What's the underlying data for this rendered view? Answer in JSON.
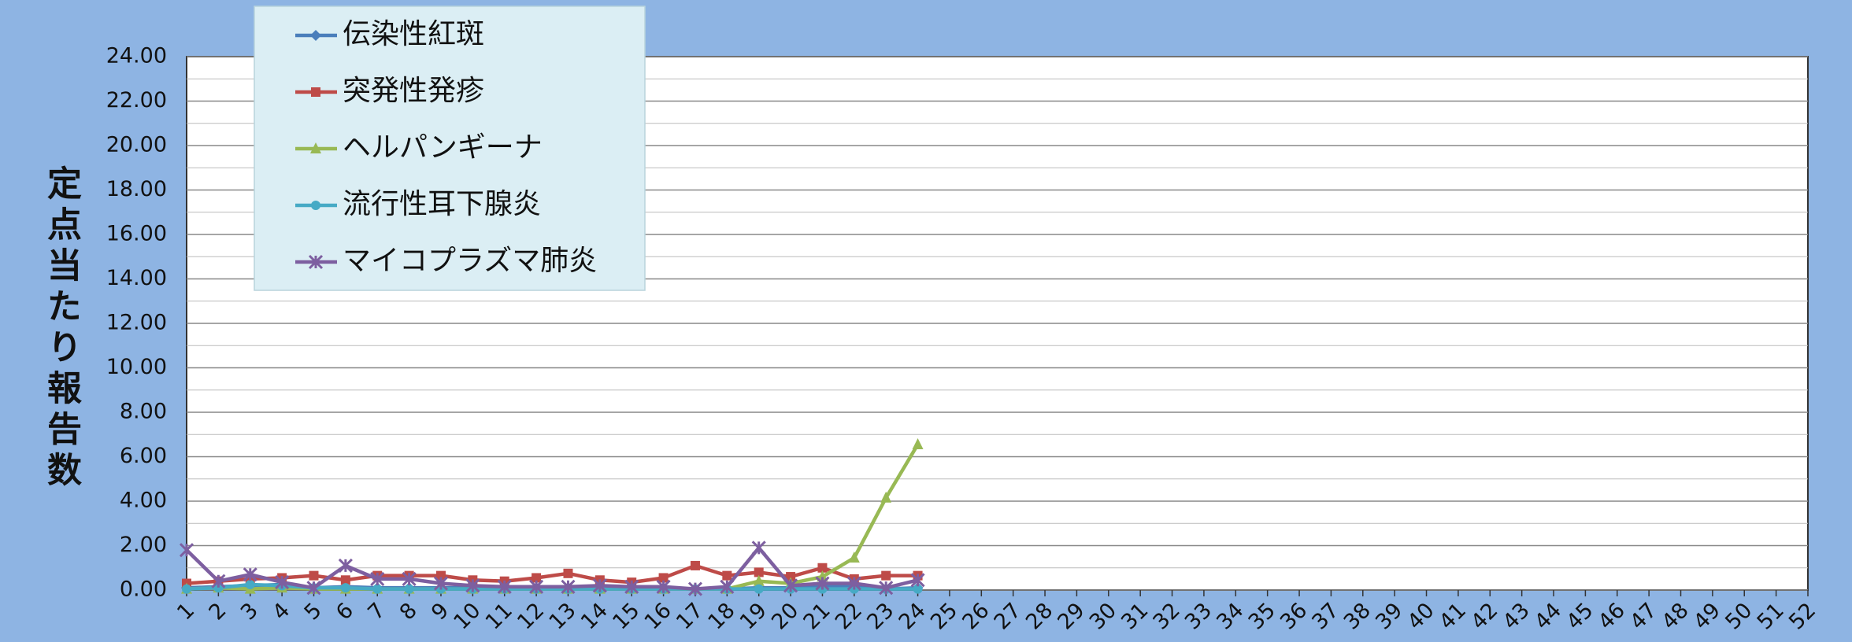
{
  "chart_data": {
    "type": "line",
    "y_label": "定点当たり報告数",
    "categories": [
      "1",
      "2",
      "3",
      "4",
      "5",
      "6",
      "7",
      "8",
      "9",
      "10",
      "11",
      "12",
      "13",
      "14",
      "15",
      "16",
      "17",
      "18",
      "19",
      "20",
      "21",
      "22",
      "23",
      "24",
      "25",
      "26",
      "27",
      "28",
      "29",
      "30",
      "31",
      "32",
      "33",
      "34",
      "35",
      "36",
      "37",
      "38",
      "39",
      "40",
      "41",
      "42",
      "43",
      "44",
      "45",
      "46",
      "47",
      "48",
      "49",
      "50",
      "51",
      "52"
    ],
    "series": [
      {
        "name": "伝染性紅斑",
        "color": "#4a7ebb",
        "marker": "diamond",
        "values": [
          0.1,
          0.15,
          0.2,
          0.25,
          0.1,
          0.15,
          0.1,
          0.1,
          0.1,
          0.1,
          0.1,
          0.1,
          0.1,
          0.1,
          0.1,
          0.05,
          0.05,
          0.05,
          0.1,
          0.1,
          0.2,
          0.15,
          0.05,
          0.1,
          null,
          null,
          null,
          null,
          null,
          null,
          null,
          null,
          null,
          null,
          null,
          null,
          null,
          null,
          null,
          null,
          null,
          null,
          null,
          null,
          null,
          null,
          null,
          null,
          null,
          null,
          null,
          null
        ]
      },
      {
        "name": "突発性発疹",
        "color": "#be4b48",
        "marker": "square",
        "values": [
          0.3,
          0.4,
          0.5,
          0.55,
          0.65,
          0.45,
          0.65,
          0.65,
          0.65,
          0.45,
          0.4,
          0.55,
          0.75,
          0.45,
          0.35,
          0.55,
          1.1,
          0.65,
          0.8,
          0.6,
          1.0,
          0.5,
          0.65,
          0.65,
          null,
          null,
          null,
          null,
          null,
          null,
          null,
          null,
          null,
          null,
          null,
          null,
          null,
          null,
          null,
          null,
          null,
          null,
          null,
          null,
          null,
          null,
          null,
          null,
          null,
          null,
          null,
          null
        ]
      },
      {
        "name": "ヘルパンギーナ",
        "color": "#98b954",
        "marker": "triangle",
        "values": [
          0.05,
          0.1,
          0.05,
          0.1,
          0.05,
          0.05,
          0.05,
          0.05,
          0.05,
          0.05,
          0.05,
          0.05,
          0.05,
          0.05,
          0.05,
          0.05,
          0.05,
          0.05,
          0.4,
          0.3,
          0.6,
          1.45,
          4.15,
          6.55,
          null,
          null,
          null,
          null,
          null,
          null,
          null,
          null,
          null,
          null,
          null,
          null,
          null,
          null,
          null,
          null,
          null,
          null,
          null,
          null,
          null,
          null,
          null,
          null,
          null,
          null,
          null,
          null
        ]
      },
      {
        "name": "流行性耳下腺炎",
        "color": "#46aac5",
        "marker": "circle",
        "values": [
          0.05,
          0.1,
          0.25,
          0.2,
          0.1,
          0.1,
          0.05,
          0.05,
          0.05,
          0.05,
          0.05,
          0.05,
          0.05,
          0.05,
          0.05,
          0.05,
          0.05,
          0.05,
          0.05,
          0.05,
          0.05,
          0.05,
          0.05,
          0.05,
          null,
          null,
          null,
          null,
          null,
          null,
          null,
          null,
          null,
          null,
          null,
          null,
          null,
          null,
          null,
          null,
          null,
          null,
          null,
          null,
          null,
          null,
          null,
          null,
          null,
          null,
          null,
          null
        ]
      },
      {
        "name": "マイコプラズマ肺炎",
        "color": "#7d5fa0",
        "marker": "star",
        "values": [
          1.8,
          0.4,
          0.7,
          0.35,
          0.1,
          1.1,
          0.5,
          0.5,
          0.3,
          0.2,
          0.15,
          0.15,
          0.15,
          0.2,
          0.15,
          0.15,
          0.05,
          0.15,
          1.9,
          0.2,
          0.3,
          0.3,
          0.1,
          0.45,
          null,
          null,
          null,
          null,
          null,
          null,
          null,
          null,
          null,
          null,
          null,
          null,
          null,
          null,
          null,
          null,
          null,
          null,
          null,
          null,
          null,
          null,
          null,
          null,
          null,
          null,
          null,
          null
        ]
      }
    ],
    "ylim": [
      0,
      24
    ],
    "yticks": [
      {
        "value": 0,
        "label": "0.00"
      },
      {
        "value": 2,
        "label": "2.00"
      },
      {
        "value": 4,
        "label": "4.00"
      },
      {
        "value": 6,
        "label": "6.00"
      },
      {
        "value": 8,
        "label": "8.00"
      },
      {
        "value": 10,
        "label": "10.00"
      },
      {
        "value": 12,
        "label": "12.00"
      },
      {
        "value": 14,
        "label": "14.00"
      },
      {
        "value": 16,
        "label": "16.00"
      },
      {
        "value": 18,
        "label": "18.00"
      },
      {
        "value": 20,
        "label": "20.00"
      },
      {
        "value": 22,
        "label": "22.00"
      },
      {
        "value": 24,
        "label": "24.00"
      }
    ],
    "grid": true,
    "minor_grid": true,
    "legend": "upper-left"
  }
}
